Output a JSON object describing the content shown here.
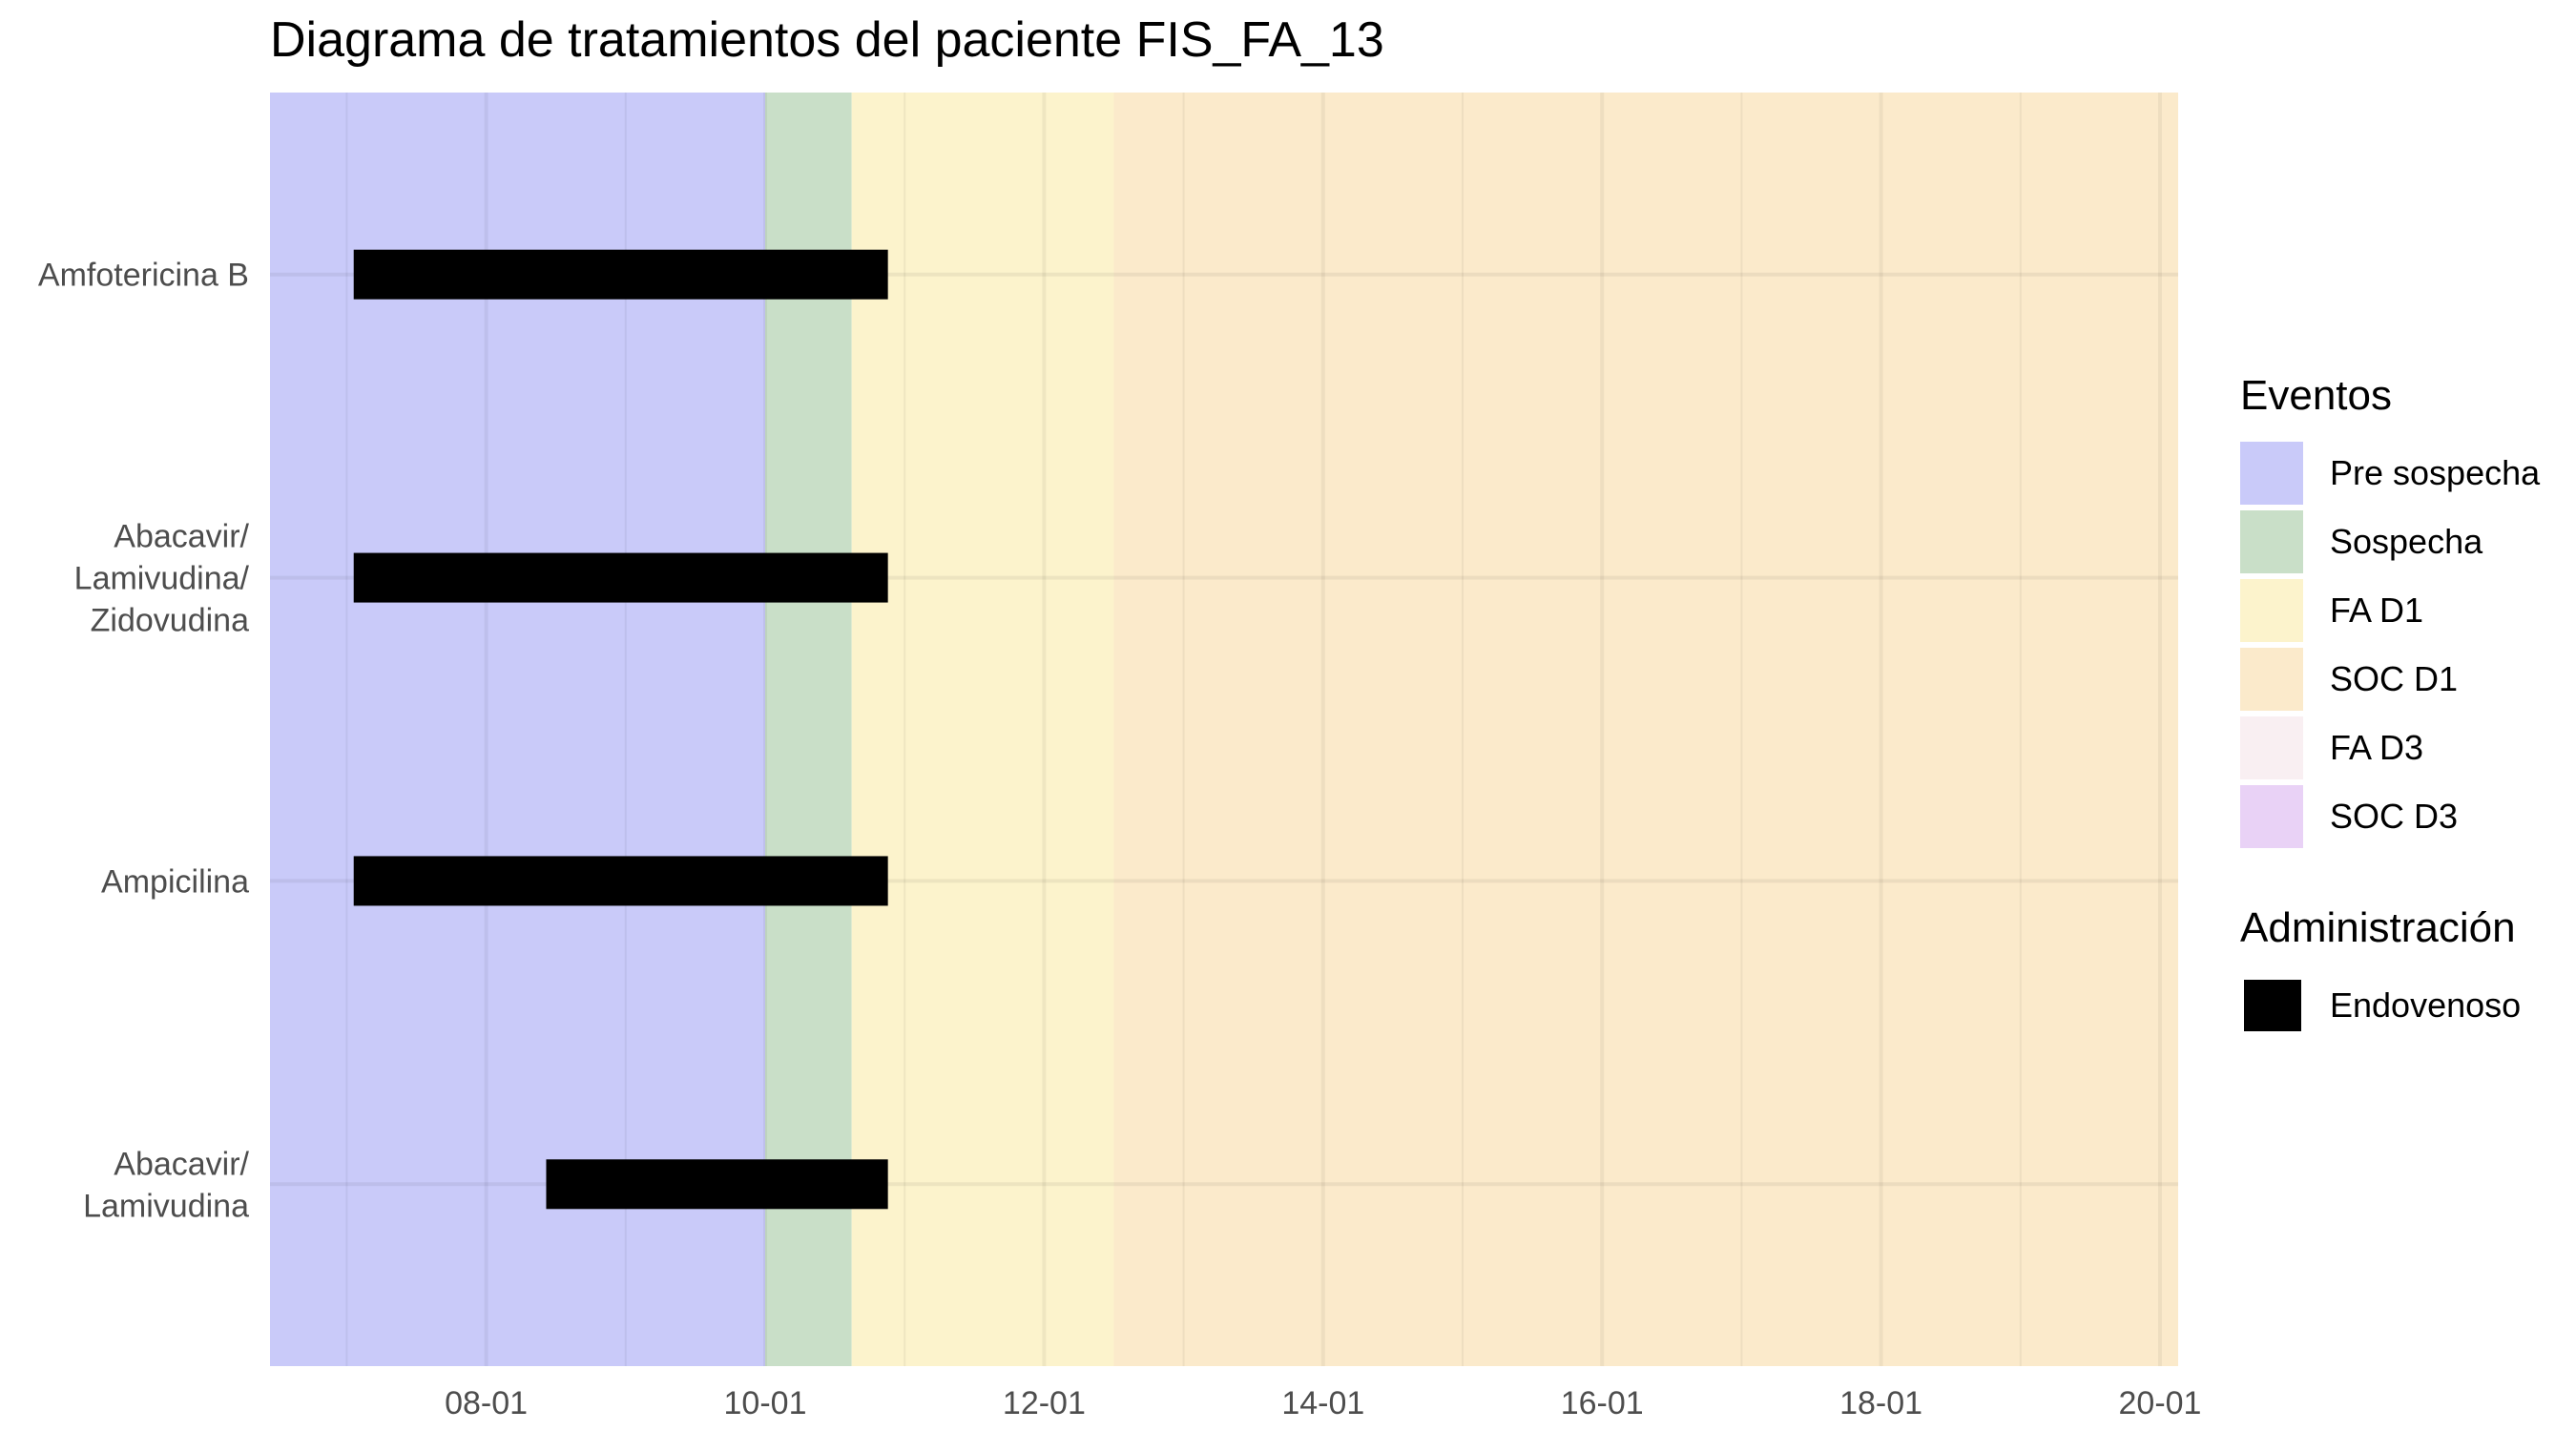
{
  "title": "Diagrama de tratamientos del paciente FIS_FA_13",
  "chart_data": {
    "type": "gantt",
    "x_axis": {
      "type": "date",
      "range": [
        "06-12",
        "20-13"
      ],
      "tick_labels": [
        "08-01",
        "10-01",
        "12-01",
        "14-01",
        "16-01",
        "18-01",
        "20-01"
      ],
      "ticks": [
        8,
        10,
        12,
        14,
        16,
        18,
        20
      ],
      "range_days": [
        6.45,
        20.13
      ]
    },
    "grid": true,
    "treatments": [
      {
        "name": "Amfotericina B",
        "label_lines": [
          "Amfotericina B"
        ],
        "start": 7.05,
        "end": 10.88,
        "administration": "Endovenoso"
      },
      {
        "name": "Abacavir/ Lamivudina/ Zidovudina",
        "label_lines": [
          "Abacavir/",
          "Lamivudina/",
          "Zidovudina"
        ],
        "start": 7.05,
        "end": 10.88,
        "administration": "Endovenoso"
      },
      {
        "name": "Ampicilina",
        "label_lines": [
          "Ampicilina"
        ],
        "start": 7.05,
        "end": 10.88,
        "administration": "Endovenoso"
      },
      {
        "name": "Abacavir/ Lamivudina",
        "label_lines": [
          "Abacavir/",
          "Lamivudina"
        ],
        "start": 8.43,
        "end": 10.88,
        "administration": "Endovenoso"
      }
    ],
    "event_periods": [
      {
        "event": "Pre sospecha",
        "start": 6.45,
        "end": 10.0
      },
      {
        "event": "Sospecha",
        "start": 10.0,
        "end": 10.62
      },
      {
        "event": "FA D1",
        "start": 10.62,
        "end": 12.5
      },
      {
        "event": "SOC D1",
        "start": 12.5,
        "end": 20.13
      }
    ]
  },
  "legend": {
    "placement": "right",
    "eventos": {
      "title": "Eventos",
      "items": [
        {
          "label": "Pre sospecha",
          "color": "#c9caf9"
        },
        {
          "label": "Sospecha",
          "color": "#c9dfc8"
        },
        {
          "label": "FA D1",
          "color": "#fcf3cc"
        },
        {
          "label": "SOC D1",
          "color": "#fbeacb"
        },
        {
          "label": "FA D3",
          "color": "#f9eff2"
        },
        {
          "label": "SOC D3",
          "color": "#e9d2f6"
        }
      ]
    },
    "administracion": {
      "title": "Administración",
      "items": [
        {
          "label": "Endovenoso",
          "color": "#000000"
        }
      ]
    }
  }
}
